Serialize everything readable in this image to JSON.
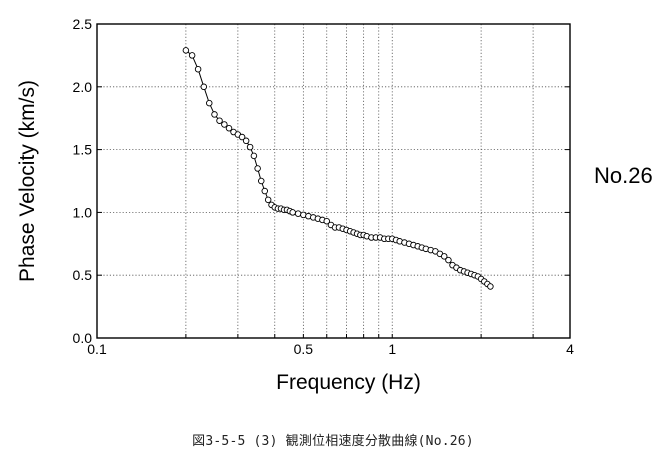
{
  "station_label": "No.26",
  "caption": "図3-5-5 (3)  観測位相速度分散曲線(No.26)",
  "chart_data": {
    "type": "line",
    "title": "",
    "xlabel": "Frequency (Hz)",
    "ylabel": "Phase Velocity (km/s)",
    "xscale": "log",
    "xlim": [
      0.1,
      4
    ],
    "ylim": [
      0,
      2.5
    ],
    "x_tick_labels": [
      "0.1",
      "0.5",
      "1",
      "4"
    ],
    "x_tick_values": [
      0.1,
      0.5,
      1,
      4
    ],
    "x_minor_gridlines": [
      0.2,
      0.3,
      0.4,
      0.5,
      0.6,
      0.7,
      0.8,
      0.9,
      1,
      2,
      3
    ],
    "y_tick_labels": [
      "0.0",
      "0.5",
      "1.0",
      "1.5",
      "2.0",
      "2.5"
    ],
    "y_tick_values": [
      0,
      0.5,
      1.0,
      1.5,
      2.0,
      2.5
    ],
    "grid": true,
    "grid_style": "dotted",
    "marker": "open-circle",
    "line_color": "#000000",
    "series": [
      {
        "x": [
          0.2,
          0.21,
          0.22,
          0.23,
          0.24,
          0.25,
          0.26,
          0.27,
          0.28,
          0.29,
          0.3,
          0.31,
          0.32,
          0.33,
          0.34,
          0.35,
          0.36,
          0.37,
          0.38,
          0.39,
          0.4,
          0.41,
          0.42,
          0.43,
          0.44,
          0.45,
          0.46,
          0.48,
          0.5,
          0.52,
          0.54,
          0.56,
          0.58,
          0.6,
          0.62,
          0.64,
          0.66,
          0.68,
          0.7,
          0.72,
          0.74,
          0.76,
          0.78,
          0.8,
          0.82,
          0.85,
          0.88,
          0.91,
          0.94,
          0.97,
          1.0,
          1.03,
          1.06,
          1.1,
          1.14,
          1.18,
          1.22,
          1.26,
          1.3,
          1.35,
          1.4,
          1.45,
          1.5,
          1.55,
          1.6,
          1.65,
          1.7,
          1.75,
          1.8,
          1.85,
          1.9,
          1.95,
          2.0,
          2.05,
          2.1,
          2.15
        ],
        "y": [
          2.29,
          2.25,
          2.14,
          2.0,
          1.87,
          1.78,
          1.73,
          1.7,
          1.67,
          1.64,
          1.62,
          1.6,
          1.57,
          1.52,
          1.45,
          1.35,
          1.25,
          1.17,
          1.1,
          1.06,
          1.04,
          1.03,
          1.03,
          1.02,
          1.02,
          1.01,
          1.0,
          0.99,
          0.98,
          0.97,
          0.96,
          0.95,
          0.94,
          0.93,
          0.9,
          0.88,
          0.88,
          0.87,
          0.86,
          0.85,
          0.84,
          0.83,
          0.82,
          0.82,
          0.81,
          0.8,
          0.8,
          0.8,
          0.79,
          0.79,
          0.79,
          0.78,
          0.77,
          0.76,
          0.75,
          0.74,
          0.73,
          0.72,
          0.71,
          0.7,
          0.69,
          0.67,
          0.65,
          0.62,
          0.58,
          0.56,
          0.54,
          0.53,
          0.52,
          0.51,
          0.5,
          0.49,
          0.47,
          0.45,
          0.43,
          0.41
        ]
      }
    ]
  }
}
